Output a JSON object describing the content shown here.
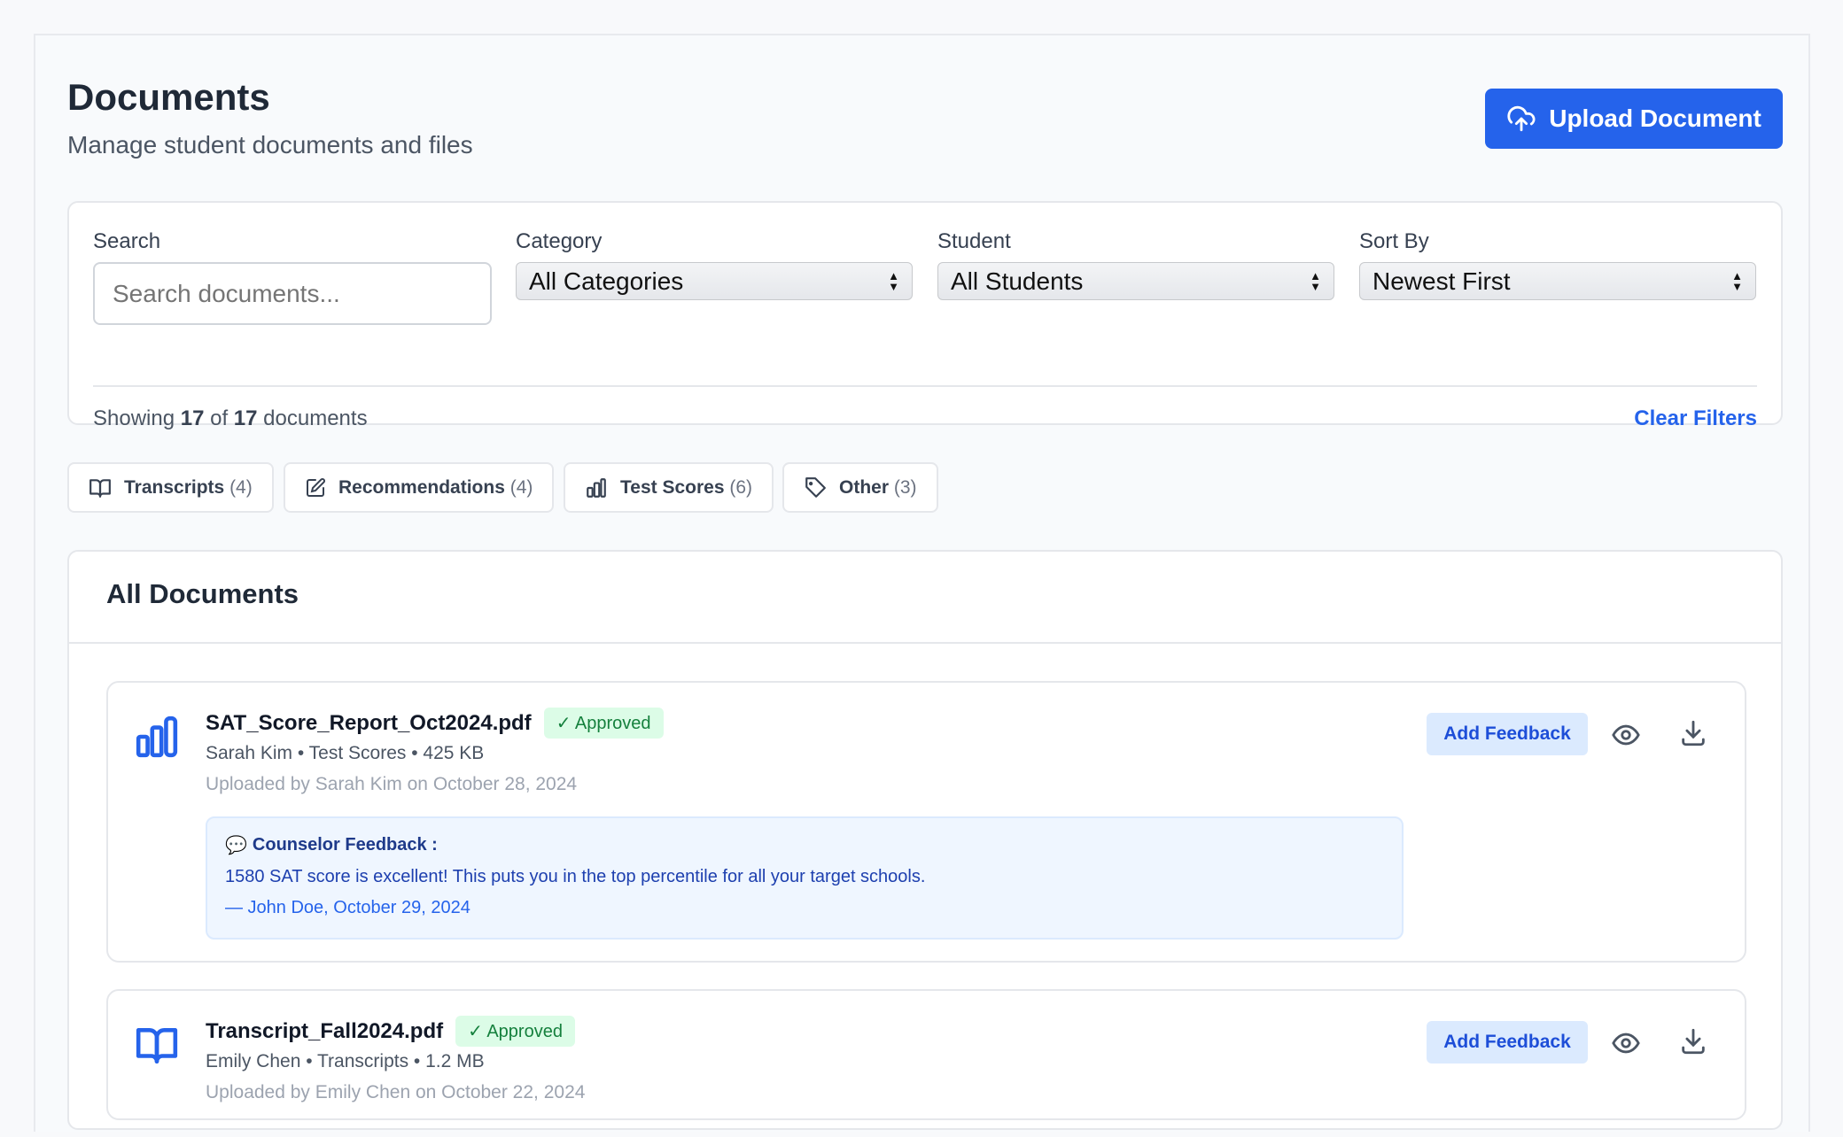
{
  "header": {
    "title": "Documents",
    "subtitle": "Manage student documents and files",
    "upload_label": "Upload Document"
  },
  "filters": {
    "search": {
      "label": "Search",
      "placeholder": "Search documents..."
    },
    "category": {
      "label": "Category",
      "value": "All Categories"
    },
    "student": {
      "label": "Student",
      "value": "All Students"
    },
    "sort": {
      "label": "Sort By",
      "value": "Newest First"
    },
    "showing": {
      "prefix": "Showing",
      "shown": "17",
      "of": "of",
      "total": "17",
      "suffix": "documents"
    },
    "clear_label": "Clear Filters"
  },
  "chips": [
    {
      "label": "Transcripts",
      "count": "(4)",
      "icon": "book-icon"
    },
    {
      "label": "Recommendations",
      "count": "(4)",
      "icon": "edit-icon"
    },
    {
      "label": "Test Scores",
      "count": "(6)",
      "icon": "bar-chart-icon"
    },
    {
      "label": "Other",
      "count": "(3)",
      "icon": "tag-icon"
    }
  ],
  "documents": {
    "title": "All Documents",
    "items": [
      {
        "name": "SAT_Score_Report_Oct2024.pdf",
        "status": "✓ Approved",
        "meta": "Sarah Kim • Test Scores • 425 KB",
        "uploaded": "Uploaded by Sarah Kim on October 28, 2024",
        "icon": "bar-chart-icon",
        "feedback": {
          "heading": "Counselor Feedback :",
          "text": "1580 SAT score is excellent! This puts you in the top percentile for all your target schools.",
          "author": "— John Doe, October 29, 2024"
        }
      },
      {
        "name": "Transcript_Fall2024.pdf",
        "status": "✓ Approved",
        "meta": "Emily Chen • Transcripts • 1.2 MB",
        "uploaded": "Uploaded by Emily Chen on October 22, 2024",
        "icon": "book-icon"
      }
    ],
    "add_feedback_label": "Add Feedback"
  },
  "colors": {
    "primary": "#2563eb",
    "approved_bg": "#dcfce7",
    "approved_text": "#15803d",
    "feedback_bg": "#eff6ff"
  }
}
